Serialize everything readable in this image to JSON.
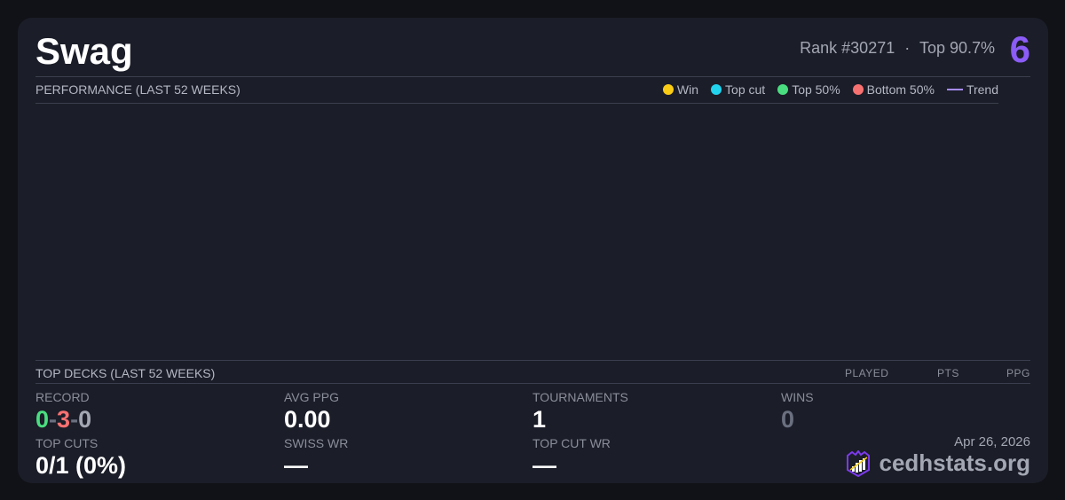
{
  "header": {
    "title": "Swag",
    "rank": "Rank #30271",
    "separator": "·",
    "top_pct": "Top 90.7%",
    "rank_badge": "6"
  },
  "performance": {
    "title": "PERFORMANCE (LAST 52 WEEKS)",
    "legend": [
      {
        "label": "Win",
        "color": "#facc15",
        "type": "dot"
      },
      {
        "label": "Top cut",
        "color": "#22d3ee",
        "type": "dot"
      },
      {
        "label": "Top 50%",
        "color": "#4ade80",
        "type": "dot"
      },
      {
        "label": "Bottom 50%",
        "color": "#f87171",
        "type": "dot"
      },
      {
        "label": "Trend",
        "color": "#a78bfa",
        "type": "line"
      }
    ]
  },
  "top_decks": {
    "title": "TOP DECKS (LAST 52 WEEKS)",
    "columns": [
      "PLAYED",
      "PTS",
      "PPG"
    ]
  },
  "stats": {
    "record": {
      "label": "RECORD",
      "wins": "0",
      "losses": "3",
      "draws": "0",
      "dash": "-"
    },
    "avg_ppg": {
      "label": "AVG PPG",
      "value": "0.00"
    },
    "tournaments": {
      "label": "TOURNAMENTS",
      "value": "1"
    },
    "wins": {
      "label": "WINS",
      "value": "0"
    },
    "top_cuts": {
      "label": "TOP CUTS",
      "value": "0/1 (0%)"
    },
    "swiss_wr": {
      "label": "SWISS WR",
      "value": "—"
    },
    "top_cut_wr": {
      "label": "TOP CUT WR",
      "value": "—"
    }
  },
  "footer": {
    "date": "Apr 26, 2026",
    "brand": "cedhstats.org"
  }
}
